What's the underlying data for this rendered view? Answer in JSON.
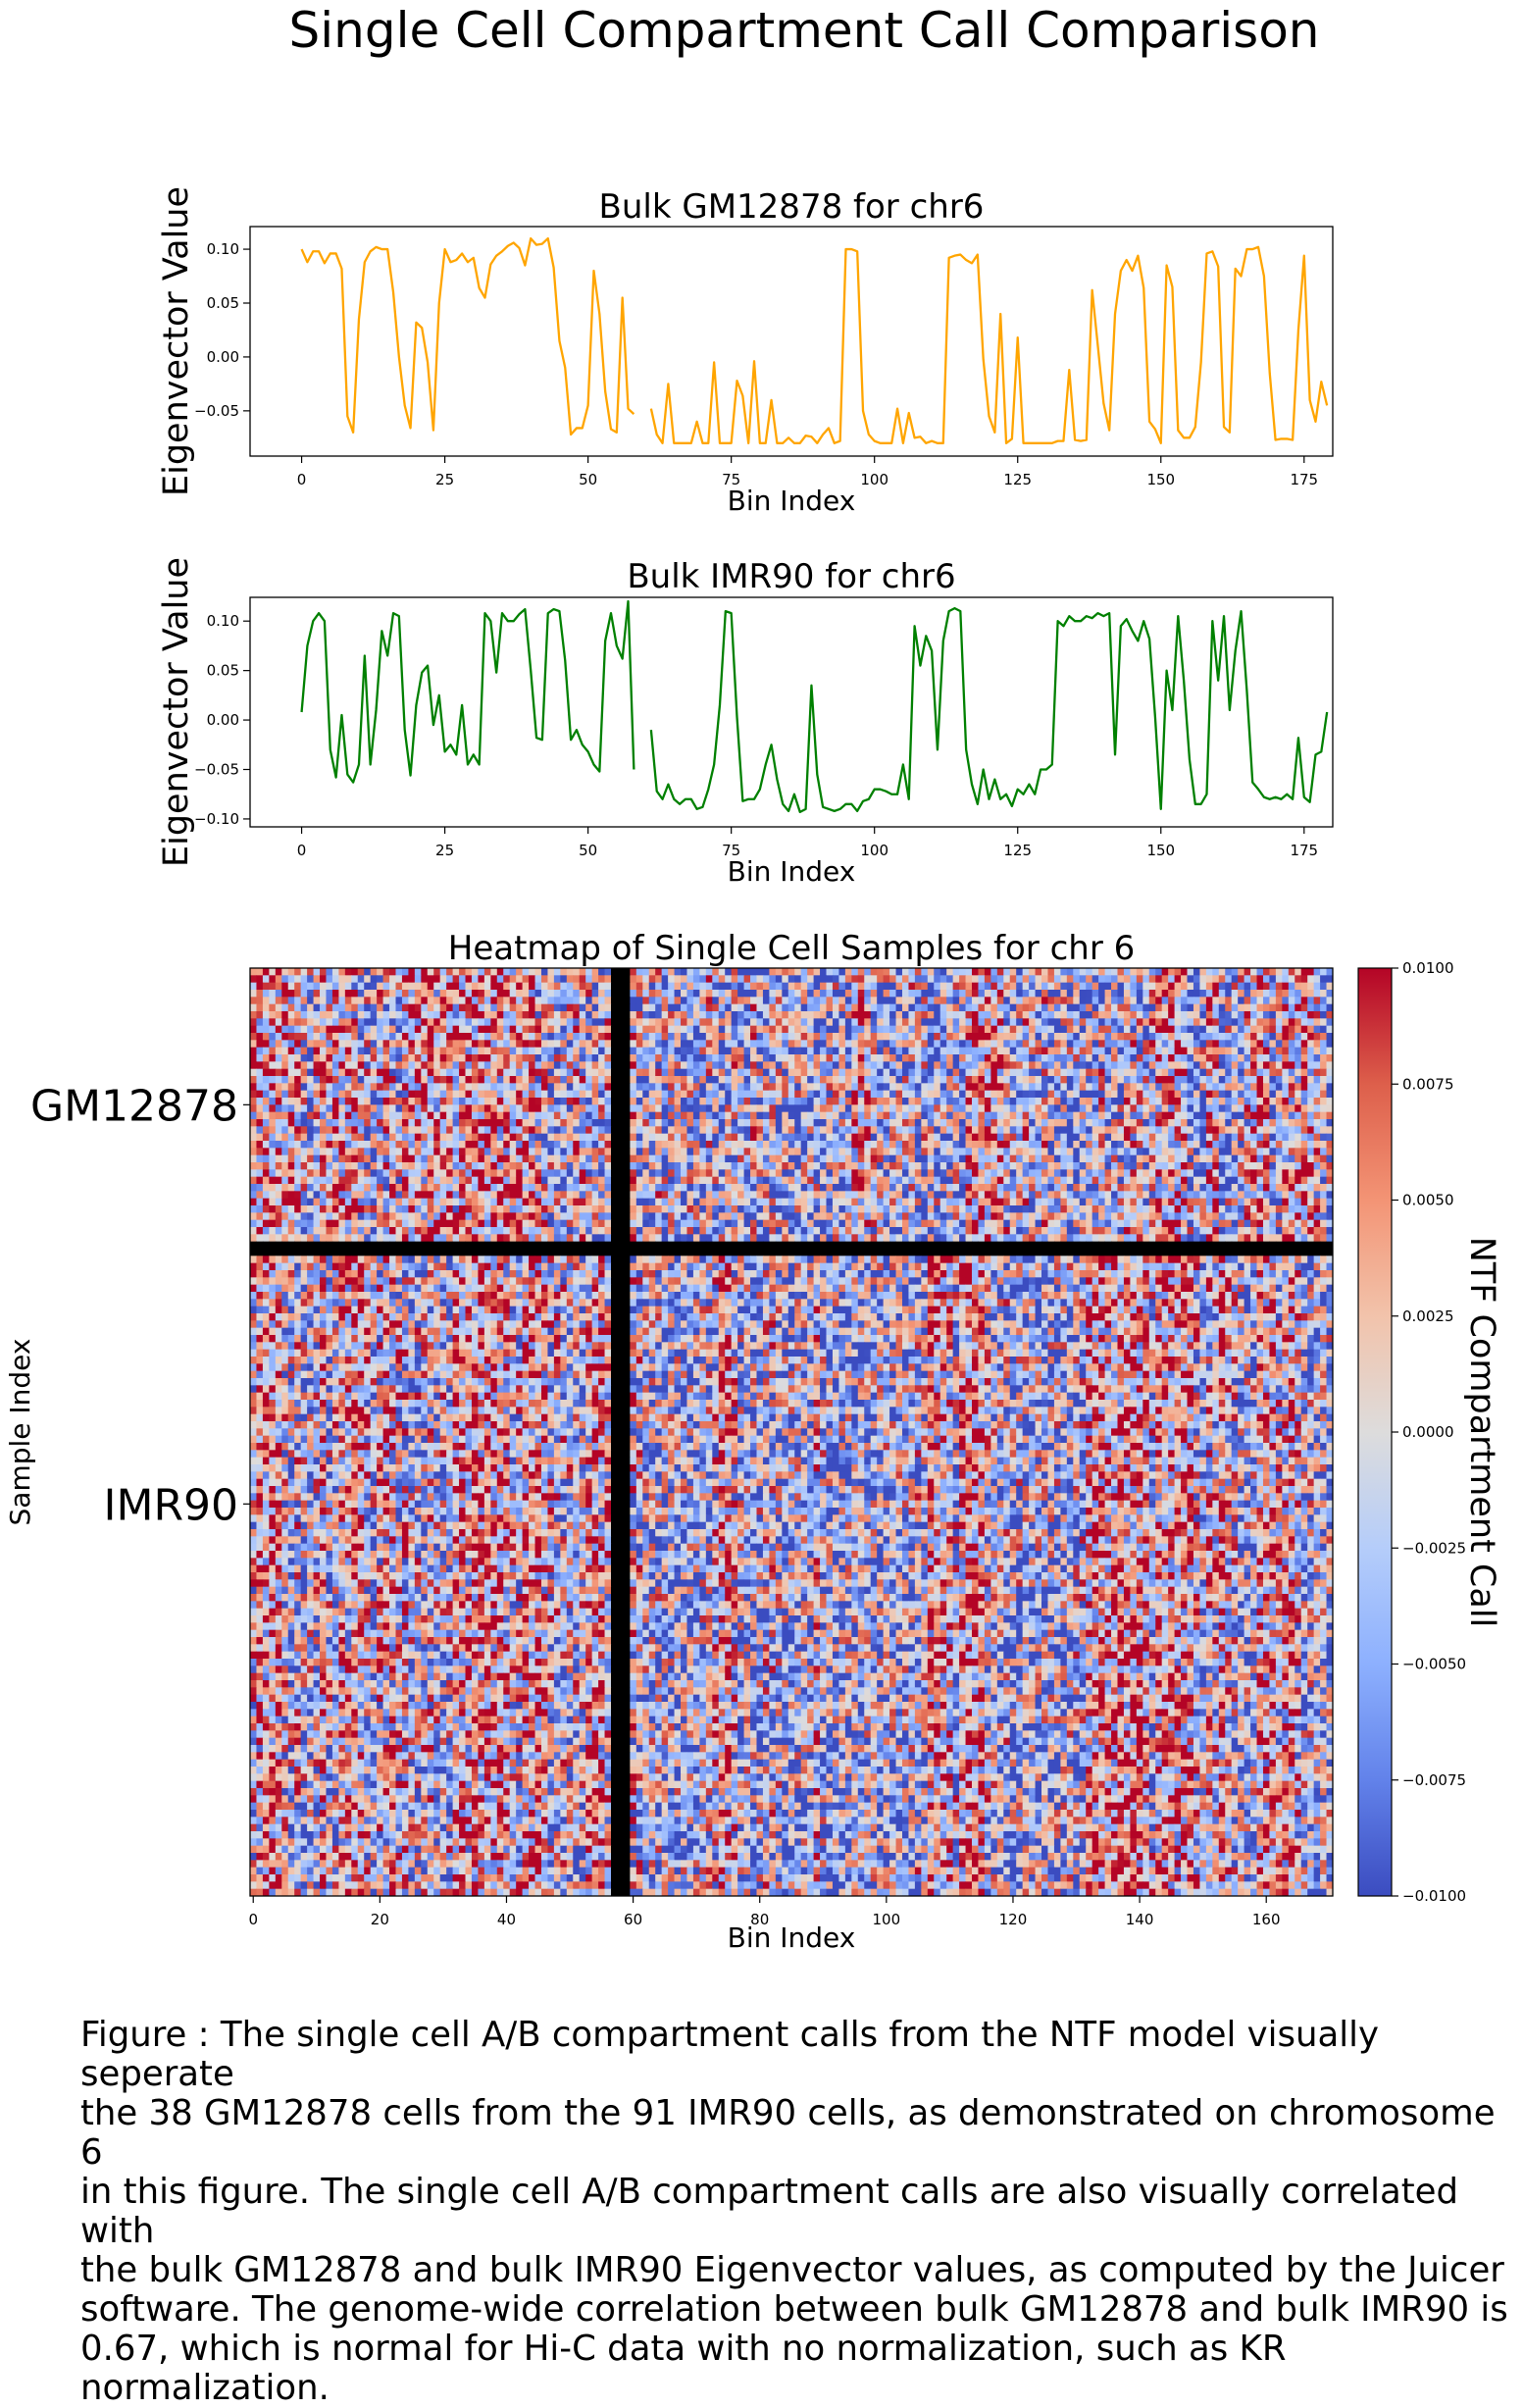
{
  "figure_title": "Single Cell Compartment Call Comparison",
  "caption": "Figure : The single cell A/B compartment calls from the NTF model visually seperate\nthe 38 GM12878 cells from the 91 IMR90 cells, as demonstrated on chromosome 6\nin this figure. The single cell A/B compartment calls are also visually correlated with\nthe bulk GM12878 and bulk IMR90 Eigenvector values, as computed by the Juicer\nsoftware. The genome-wide correlation between bulk GM12878 and bulk IMR90 is\n0.67, which is normal for Hi-C data with no normalization, such as KR normalization.",
  "chart_data": [
    {
      "type": "line",
      "title": "Bulk GM12878 for chr6",
      "xlabel": "Bin Index",
      "ylabel": "Eigenvector Value",
      "xlim": [
        -9,
        180
      ],
      "ylim": [
        -0.092,
        0.121
      ],
      "xticks": [
        0,
        25,
        50,
        75,
        100,
        125,
        150,
        175
      ],
      "yticks": [
        -0.05,
        0.0,
        0.05,
        0.1
      ],
      "ytick_labels": [
        "−0.05",
        "0.00",
        "0.05",
        "0.10"
      ],
      "color": "#ffa500",
      "missing_bins": [
        59,
        60
      ],
      "values": [
        0.1,
        0.088,
        0.098,
        0.098,
        0.087,
        0.096,
        0.096,
        0.082,
        -0.055,
        -0.07,
        0.035,
        0.088,
        0.098,
        0.102,
        0.1,
        0.1,
        0.06,
        0.0,
        -0.045,
        -0.066,
        0.032,
        0.027,
        -0.005,
        -0.068,
        0.05,
        0.1,
        0.088,
        0.09,
        0.096,
        0.088,
        0.092,
        0.064,
        0.055,
        0.086,
        0.094,
        0.098,
        0.103,
        0.106,
        0.101,
        0.085,
        0.11,
        0.104,
        0.105,
        0.11,
        0.083,
        0.015,
        -0.01,
        -0.072,
        -0.066,
        -0.066,
        -0.045,
        0.08,
        0.04,
        -0.032,
        -0.067,
        -0.07,
        0.055,
        -0.048,
        -0.053,
        null,
        null,
        -0.048,
        -0.072,
        -0.08,
        -0.025,
        -0.08,
        -0.08,
        -0.08,
        -0.08,
        -0.06,
        -0.08,
        -0.08,
        -0.005,
        -0.08,
        -0.08,
        -0.08,
        -0.022,
        -0.036,
        -0.08,
        -0.004,
        -0.08,
        -0.08,
        -0.04,
        -0.08,
        -0.08,
        -0.075,
        -0.08,
        -0.08,
        -0.073,
        -0.074,
        -0.08,
        -0.072,
        -0.066,
        -0.08,
        -0.078,
        0.1,
        0.1,
        0.098,
        -0.05,
        -0.072,
        -0.078,
        -0.08,
        -0.08,
        -0.08,
        -0.048,
        -0.08,
        -0.052,
        -0.075,
        -0.074,
        -0.08,
        -0.078,
        -0.08,
        -0.08,
        0.092,
        0.094,
        0.095,
        0.09,
        0.087,
        0.095,
        -0.002,
        -0.055,
        -0.07,
        0.04,
        -0.08,
        -0.076,
        0.018,
        -0.08,
        -0.08,
        -0.08,
        -0.08,
        -0.08,
        -0.08,
        -0.078,
        -0.078,
        -0.012,
        -0.077,
        -0.078,
        -0.077,
        0.062,
        0.01,
        -0.043,
        -0.068,
        0.04,
        0.08,
        0.09,
        0.08,
        0.094,
        0.064,
        -0.06,
        -0.067,
        -0.08,
        0.085,
        0.065,
        -0.068,
        -0.075,
        -0.075,
        -0.065,
        -0.005,
        0.096,
        0.098,
        0.084,
        -0.065,
        -0.07,
        0.082,
        0.075,
        0.1,
        0.1,
        0.102,
        0.075,
        -0.015,
        -0.077,
        -0.076,
        -0.076,
        -0.077,
        0.025,
        0.094,
        -0.04,
        -0.06,
        -0.023,
        -0.045
      ],
      "annotations": []
    },
    {
      "type": "line",
      "title": "Bulk IMR90 for chr6",
      "xlabel": "Bin Index",
      "ylabel": "Eigenvector Value",
      "xlim": [
        -9,
        180
      ],
      "ylim": [
        -0.108,
        0.124
      ],
      "xticks": [
        0,
        25,
        50,
        75,
        100,
        125,
        150,
        175
      ],
      "yticks": [
        -0.1,
        -0.05,
        0.0,
        0.05,
        0.1
      ],
      "ytick_labels": [
        "−0.10",
        "−0.05",
        "0.00",
        "0.05",
        "0.10"
      ],
      "color": "#008000",
      "missing_bins": [
        59,
        60
      ],
      "values": [
        0.008,
        0.075,
        0.1,
        0.108,
        0.1,
        -0.03,
        -0.058,
        0.005,
        -0.055,
        -0.063,
        -0.045,
        0.065,
        -0.045,
        0.01,
        0.09,
        0.065,
        0.108,
        0.105,
        -0.01,
        -0.056,
        0.015,
        0.048,
        0.055,
        -0.005,
        0.025,
        -0.032,
        -0.025,
        -0.035,
        0.015,
        -0.045,
        -0.035,
        -0.045,
        0.108,
        0.1,
        0.048,
        0.108,
        0.1,
        0.1,
        0.107,
        0.112,
        0.05,
        -0.018,
        -0.02,
        0.108,
        0.112,
        0.11,
        0.06,
        -0.02,
        -0.01,
        -0.025,
        -0.032,
        -0.045,
        -0.052,
        0.08,
        0.108,
        0.075,
        0.062,
        0.12,
        -0.05,
        null,
        null,
        -0.01,
        -0.072,
        -0.08,
        -0.065,
        -0.08,
        -0.085,
        -0.08,
        -0.08,
        -0.09,
        -0.088,
        -0.07,
        -0.045,
        0.015,
        0.11,
        0.108,
        0.003,
        -0.082,
        -0.08,
        -0.08,
        -0.07,
        -0.045,
        -0.025,
        -0.06,
        -0.085,
        -0.092,
        -0.075,
        -0.093,
        -0.09,
        0.035,
        -0.055,
        -0.088,
        -0.09,
        -0.092,
        -0.09,
        -0.085,
        -0.085,
        -0.092,
        -0.082,
        -0.08,
        -0.07,
        -0.07,
        -0.072,
        -0.075,
        -0.075,
        -0.045,
        -0.08,
        0.095,
        0.055,
        0.085,
        0.07,
        -0.03,
        0.08,
        0.11,
        0.113,
        0.11,
        -0.03,
        -0.065,
        -0.085,
        -0.05,
        -0.08,
        -0.06,
        -0.08,
        -0.075,
        -0.087,
        -0.07,
        -0.075,
        -0.065,
        -0.075,
        -0.05,
        -0.05,
        -0.045,
        0.1,
        0.095,
        0.105,
        0.1,
        0.1,
        0.105,
        0.103,
        0.108,
        0.105,
        0.108,
        -0.035,
        0.095,
        0.102,
        0.09,
        0.08,
        0.1,
        0.082,
        0.003,
        -0.09,
        0.05,
        0.01,
        0.105,
        0.04,
        -0.04,
        -0.085,
        -0.085,
        -0.075,
        0.1,
        0.04,
        0.105,
        0.01,
        0.07,
        0.11,
        0.03,
        -0.063,
        -0.07,
        -0.078,
        -0.08,
        -0.078,
        -0.08,
        -0.075,
        -0.08,
        -0.018,
        -0.078,
        -0.083,
        -0.035,
        -0.032,
        0.008
      ],
      "annotations": []
    },
    {
      "type": "heatmap",
      "title": "Heatmap of Single Cell Samples for chr 6",
      "xlabel": "Bin Index",
      "ylabel": "Sample Index",
      "n_bins": 171,
      "xticks": [
        0,
        20,
        40,
        60,
        80,
        100,
        120,
        140,
        160
      ],
      "ytick_labels": [
        "GM12878",
        "IMR90"
      ],
      "groups": [
        {
          "name": "GM12878",
          "n_cells": 38
        },
        {
          "name": "IMR90",
          "n_cells": 91
        }
      ],
      "masked_bins": [
        57,
        58,
        59
      ],
      "separator_after_sample": 38,
      "vmin": -0.01,
      "vmax": 0.01,
      "colormap": "coolwarm",
      "colorbar_label": "NTF Compartment Call",
      "colorbar_ticks": [
        0.01,
        0.0075,
        0.005,
        0.0025,
        0.0,
        -0.0025,
        -0.005,
        -0.0075,
        -0.01
      ],
      "colorbar_tick_labels": [
        "0.0100",
        "0.0075",
        "0.0050",
        "0.0025",
        "0.0000",
        "−0.0025",
        "−0.0050",
        "−0.0075",
        "−0.0100"
      ],
      "mask_color": "#000000"
    }
  ]
}
